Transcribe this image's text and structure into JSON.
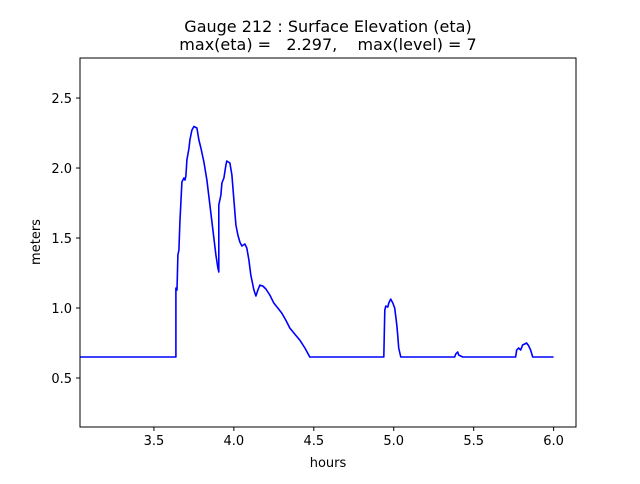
{
  "chart_data": {
    "type": "line",
    "title": "Gauge 212 : Surface Elevation (eta)",
    "subtitle": "max(eta) =   2.297,    max(level) = 7",
    "xlabel": "hours",
    "ylabel": "meters",
    "xlim": [
      3.0375,
      6.14
    ],
    "ylim": [
      0.15,
      2.786
    ],
    "xticks": [
      3.5,
      4.0,
      4.5,
      5.0,
      5.5,
      6.0
    ],
    "xtick_labels": [
      "3.5",
      "4.0",
      "4.5",
      "5.0",
      "5.5",
      "6.0"
    ],
    "yticks": [
      0.5,
      1.0,
      1.5,
      2.0,
      2.5
    ],
    "ytick_labels": [
      "0.5",
      "1.0",
      "1.5",
      "2.0",
      "2.5"
    ],
    "grid": false,
    "series": [
      {
        "name": "eta",
        "color": "#0000ff",
        "x": [
          3.0375,
          3.6375,
          3.6375,
          3.644,
          3.65,
          3.656,
          3.6625,
          3.669,
          3.675,
          3.6875,
          3.694,
          3.7,
          3.706,
          3.719,
          3.725,
          3.7375,
          3.75,
          3.769,
          3.781,
          3.794,
          3.8125,
          3.831,
          3.85,
          3.869,
          3.8875,
          3.9,
          3.906,
          3.906,
          3.919,
          3.925,
          3.9375,
          3.95,
          3.956,
          3.975,
          3.9875,
          4.0,
          4.0125,
          4.025,
          4.0375,
          4.05,
          4.069,
          4.081,
          4.094,
          4.106,
          4.125,
          4.1375,
          4.15,
          4.1625,
          4.181,
          4.2,
          4.225,
          4.25,
          4.275,
          4.3,
          4.325,
          4.35,
          4.381,
          4.4125,
          4.444,
          4.475,
          4.9375,
          4.944,
          4.95,
          4.9625,
          4.969,
          4.981,
          4.994,
          5.006,
          5.019,
          5.025,
          5.031,
          5.044,
          5.381,
          5.3875,
          5.4,
          5.406,
          5.419,
          5.431,
          5.7625,
          5.769,
          5.781,
          5.794,
          5.806,
          5.819,
          5.831,
          5.844,
          5.856,
          5.869,
          6.0
        ],
        "y": [
          0.65,
          0.65,
          1.143,
          1.129,
          1.379,
          1.414,
          1.614,
          1.771,
          1.9,
          1.929,
          1.914,
          1.943,
          2.057,
          2.143,
          2.2,
          2.271,
          2.297,
          2.286,
          2.2,
          2.143,
          2.043,
          1.914,
          1.736,
          1.557,
          1.379,
          1.286,
          1.257,
          1.736,
          1.807,
          1.893,
          1.929,
          2.021,
          2.05,
          2.036,
          1.95,
          1.771,
          1.593,
          1.521,
          1.471,
          1.443,
          1.457,
          1.429,
          1.343,
          1.236,
          1.129,
          1.086,
          1.129,
          1.164,
          1.157,
          1.136,
          1.093,
          1.036,
          1.0,
          0.964,
          0.914,
          0.857,
          0.814,
          0.771,
          0.714,
          0.65,
          0.65,
          0.986,
          1.014,
          1.007,
          1.036,
          1.064,
          1.036,
          1.0,
          0.879,
          0.807,
          0.714,
          0.65,
          0.65,
          0.671,
          0.686,
          0.664,
          0.657,
          0.65,
          0.65,
          0.7,
          0.714,
          0.7,
          0.736,
          0.743,
          0.75,
          0.729,
          0.7,
          0.65,
          0.65
        ]
      }
    ]
  }
}
